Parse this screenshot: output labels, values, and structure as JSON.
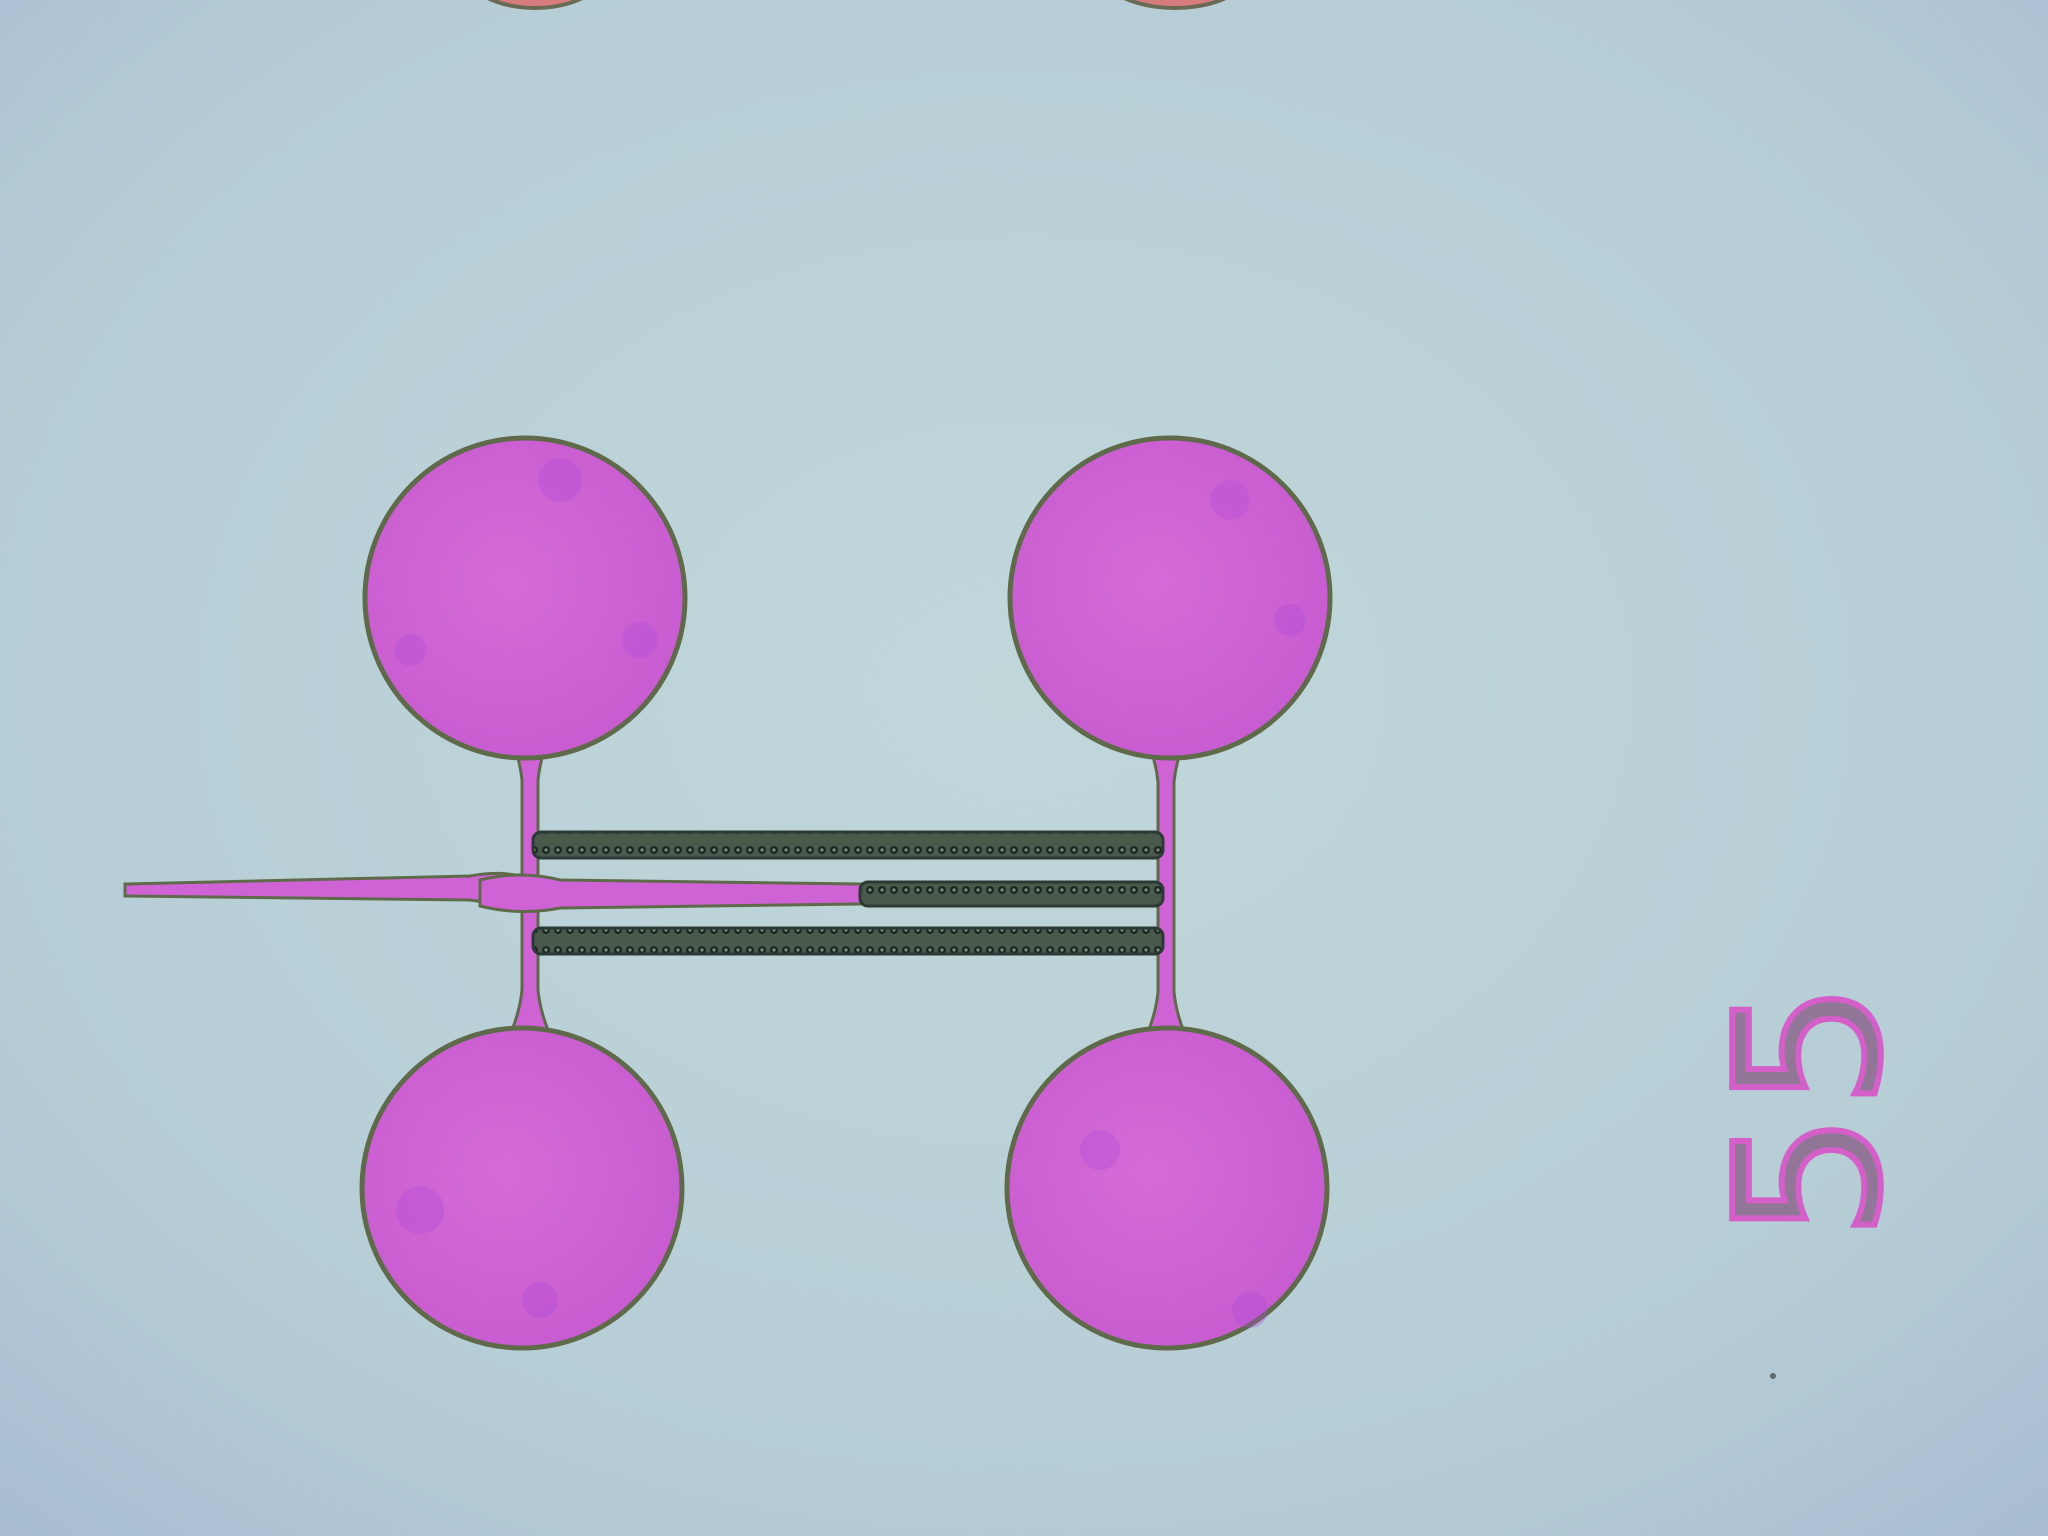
{
  "scene": {
    "subject": "microscope-image-of-fabricated-device",
    "label_text": "55",
    "colors": {
      "substrate": "#b8d0d6",
      "substrate_edge": "#a9bfd2",
      "pad_fill": "#cf63d6",
      "pad_outline": "#5f6a4a",
      "rail_dark": "#3c4a43",
      "rail_dot": "#1d2a2a"
    }
  }
}
